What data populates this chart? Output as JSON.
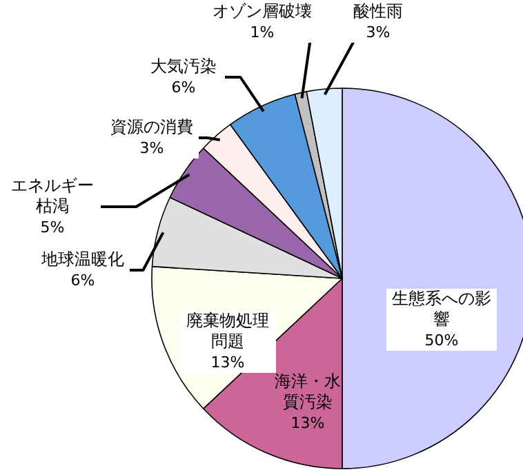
{
  "chart_data": {
    "type": "pie",
    "categories": [
      "生態系への影響",
      "海洋・水質汚染",
      "廃棄物処理問題",
      "地球温暖化",
      "エネルギー枯渇",
      "資源の消費",
      "大気汚染",
      "オゾン層破壊",
      "酸性雨"
    ],
    "values": [
      50,
      13,
      13,
      6,
      5,
      3,
      6,
      1,
      3
    ],
    "value_labels": [
      "50%",
      "13%",
      "13%",
      "6%",
      "5%",
      "3%",
      "6%",
      "1%",
      "3%"
    ],
    "colors": [
      "#ccccff",
      "#cc6699",
      "#fffff0",
      "#e0e0e0",
      "#9966aa",
      "#fff0f0",
      "#5599dd",
      "#c0c0c0",
      "#ddeeff"
    ]
  }
}
